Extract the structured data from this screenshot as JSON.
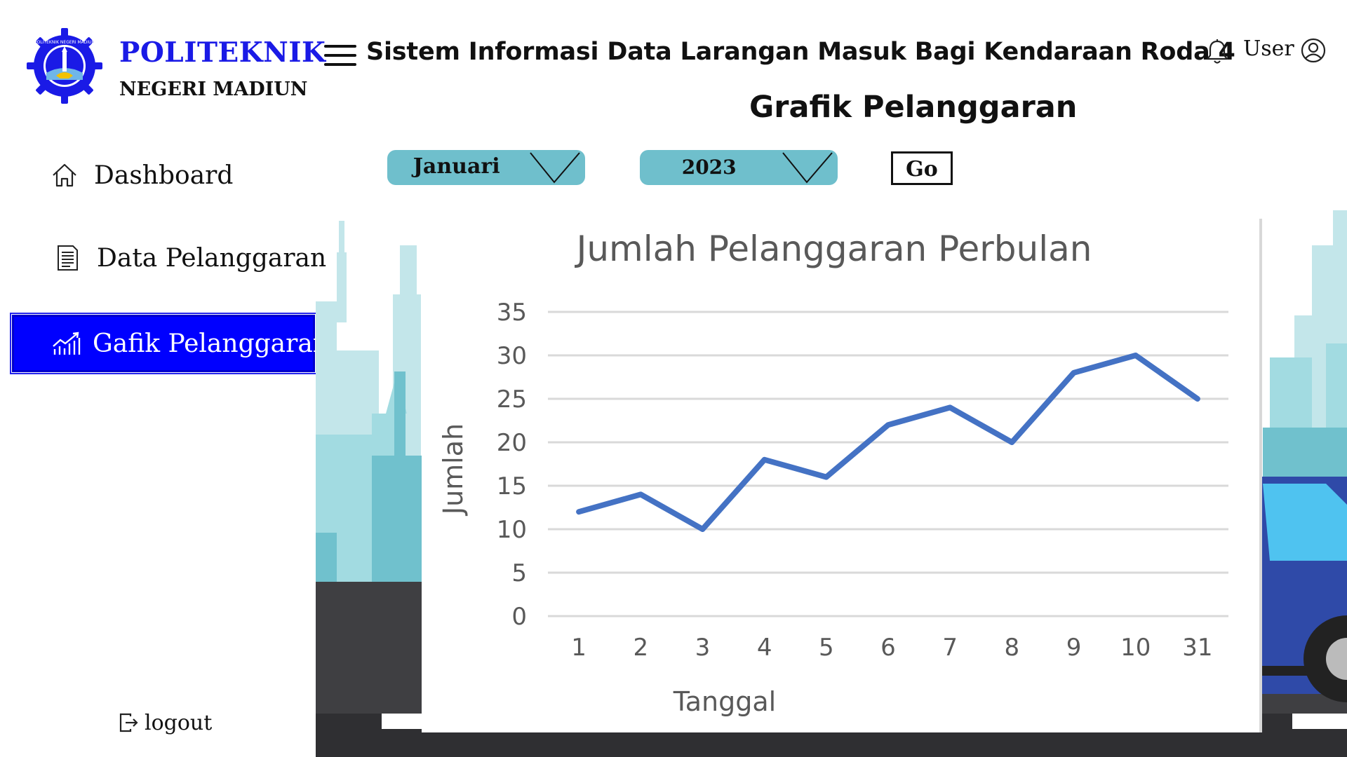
{
  "brand": {
    "line1": "POLITEKNIK",
    "line2": "NEGERI MADIUN",
    "emblem_ring_text": "POLITEKNIK NEGERI MADIUN",
    "emblem_color": "#1a1ae6"
  },
  "header": {
    "app_title": "Sistem Informasi Data Larangan Masuk Bagi Kendaraan Roda 4",
    "user_label": "User"
  },
  "page": {
    "title": "Grafik Pelanggaran"
  },
  "sidebar": {
    "items": [
      {
        "label": "Dashboard",
        "icon": "home-icon",
        "active": false
      },
      {
        "label": "Data Pelanggaran",
        "icon": "document-icon",
        "active": false
      },
      {
        "label": "Gafik Pelanggaran",
        "icon": "chart-icon",
        "active": true
      }
    ],
    "logout_label": "logout",
    "active_color": "#0000ff"
  },
  "filters": {
    "month": "Januari",
    "year": "2023",
    "go_label": "Go",
    "select_color": "#6fbfcc"
  },
  "chart_data": {
    "type": "line",
    "title": "Jumlah Pelanggaran Perbulan",
    "xlabel": "Tanggal",
    "ylabel": "Jumlah",
    "categories": [
      "1",
      "2",
      "3",
      "4",
      "5",
      "6",
      "7",
      "8",
      "9",
      "10",
      "31"
    ],
    "values": [
      12,
      14,
      10,
      18,
      16,
      22,
      24,
      20,
      28,
      30,
      25
    ],
    "ylim": [
      0,
      35
    ],
    "yticks": [
      0,
      5,
      10,
      15,
      20,
      25,
      30,
      35
    ],
    "grid": true,
    "line_color": "#4472c4"
  }
}
